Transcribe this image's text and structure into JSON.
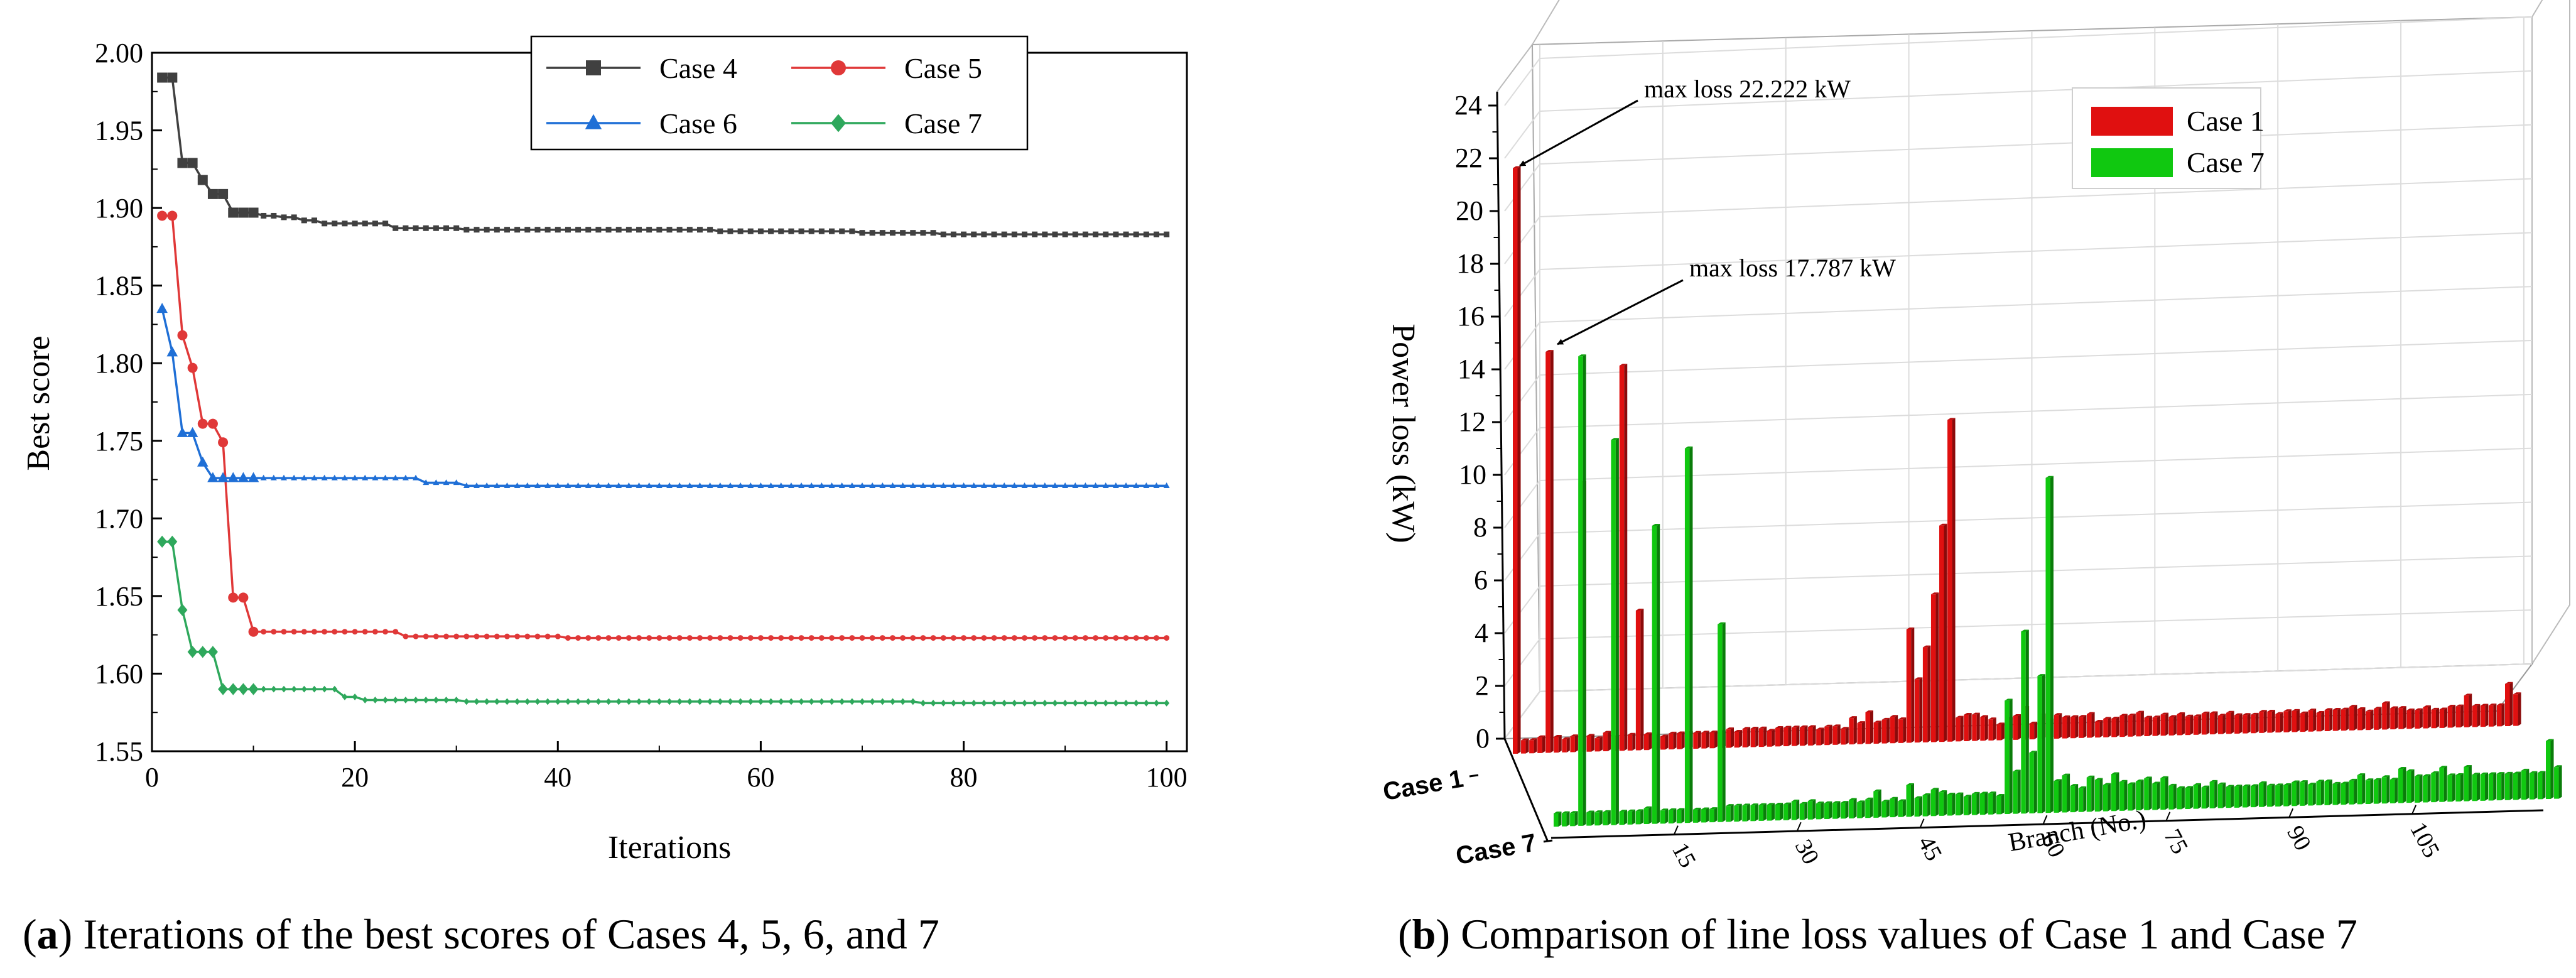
{
  "chart_data": [
    {
      "type": "line",
      "caption_letter": "a",
      "caption_text": " Iterations of the best scores of Cases 4, 5, 6, and 7",
      "xlabel": "Iterations",
      "ylabel": "Best score",
      "xlim": [
        0,
        102
      ],
      "ylim": [
        1.55,
        2.0
      ],
      "xticks": [
        0,
        20,
        40,
        60,
        80,
        100
      ],
      "yticks": [
        1.55,
        1.6,
        1.65,
        1.7,
        1.75,
        1.8,
        1.85,
        1.9,
        1.95,
        2.0
      ],
      "legend_position": "top-right",
      "series": [
        {
          "name": "Case 4",
          "color": "#404040",
          "marker": "square",
          "steps": [
            [
              1,
              1.984
            ],
            [
              3,
              1.929
            ],
            [
              5,
              1.918
            ],
            [
              6,
              1.909
            ],
            [
              8,
              1.897
            ],
            [
              11,
              1.895
            ],
            [
              13,
              1.894
            ],
            [
              15,
              1.892
            ],
            [
              17,
              1.89
            ],
            [
              24,
              1.887
            ],
            [
              31,
              1.886
            ],
            [
              56,
              1.885
            ],
            [
              70,
              1.884
            ],
            [
              78,
              1.883
            ],
            [
              100,
              1.883
            ]
          ]
        },
        {
          "name": "Case 5",
          "color": "#e03838",
          "marker": "circle",
          "steps": [
            [
              1,
              1.895
            ],
            [
              3,
              1.818
            ],
            [
              4,
              1.797
            ],
            [
              5,
              1.761
            ],
            [
              7,
              1.749
            ],
            [
              8,
              1.649
            ],
            [
              10,
              1.627
            ],
            [
              25,
              1.624
            ],
            [
              41,
              1.623
            ],
            [
              100,
              1.623
            ]
          ]
        },
        {
          "name": "Case 6",
          "color": "#1f6fd6",
          "marker": "triangle",
          "steps": [
            [
              1,
              1.835
            ],
            [
              2,
              1.807
            ],
            [
              3,
              1.755
            ],
            [
              5,
              1.736
            ],
            [
              6,
              1.726
            ],
            [
              27,
              1.723
            ],
            [
              31,
              1.721
            ],
            [
              100,
              1.721
            ]
          ]
        },
        {
          "name": "Case 7",
          "color": "#2ea85c",
          "marker": "diamond",
          "steps": [
            [
              1,
              1.685
            ],
            [
              3,
              1.641
            ],
            [
              4,
              1.614
            ],
            [
              7,
              1.59
            ],
            [
              19,
              1.585
            ],
            [
              21,
              1.583
            ],
            [
              31,
              1.582
            ],
            [
              76,
              1.581
            ],
            [
              100,
              1.581
            ]
          ]
        }
      ]
    },
    {
      "type": "bar3d",
      "caption_letter": "b",
      "caption_text": " Comparison of line loss values of Case 1 and Case 7",
      "xlabel": "Branch (No.)",
      "ylabel": "Power loss (kW)",
      "zlim": [
        0,
        24
      ],
      "zticks": [
        0,
        2,
        4,
        6,
        8,
        10,
        12,
        14,
        16,
        18,
        20,
        22,
        24
      ],
      "xticks": [
        15,
        30,
        45,
        60,
        75,
        90,
        105
      ],
      "annotations": [
        "max loss 22.222 kW",
        "max loss 17.787 kW"
      ],
      "series": [
        {
          "name": "Case 1",
          "color": "#e01010",
          "values": [
            22.2,
            0.5,
            0.5,
            0.6,
            15.2,
            0.6,
            0.5,
            0.6,
            10.2,
            0.6,
            0.5,
            0.7,
            0.5,
            14.6,
            0.6,
            5.3,
            0.6,
            0.5,
            0.5,
            0.6,
            0.6,
            0.6,
            0.6,
            0.6,
            0.6,
            0.6,
            0.7,
            0.6,
            0.7,
            0.7,
            0.7,
            0.6,
            0.7,
            0.7,
            0.7,
            0.7,
            0.7,
            0.6,
            0.7,
            0.7,
            0.6,
            1.0,
            0.8,
            1.2,
            0.8,
            0.9,
            1.0,
            0.9,
            4.3,
            2.4,
            3.6,
            5.6,
            8.2,
            12.2,
            0.9,
            1.0,
            1.0,
            0.9,
            0.8,
            0.6,
            0.8,
            0.9,
            1.2,
            0.6,
            0.9,
            0.7,
            0.9,
            0.8,
            0.8,
            0.8,
            0.9,
            0.6,
            0.7,
            0.7,
            0.8,
            0.8,
            0.9,
            0.7,
            0.7,
            0.8,
            0.7,
            0.8,
            0.7,
            0.7,
            0.8,
            0.8,
            0.7,
            0.8,
            0.7,
            0.7,
            0.7,
            0.8,
            0.8,
            0.7,
            0.8,
            0.8,
            0.7,
            0.8,
            0.7,
            0.8,
            0.8,
            0.8,
            0.9,
            0.8,
            0.7,
            0.8,
            1.0,
            0.8,
            0.8,
            0.7,
            0.7,
            0.8,
            0.7,
            0.7,
            0.8,
            0.8,
            1.2,
            0.8,
            0.8,
            0.8,
            0.8,
            1.6,
            1.2
          ]
        },
        {
          "name": "Case 7",
          "color": "#10c810",
          "values": [
            0.5,
            0.5,
            0.5,
            17.8,
            0.5,
            0.5,
            0.5,
            14.6,
            0.5,
            0.5,
            0.5,
            0.6,
            11.3,
            0.5,
            0.5,
            0.5,
            14.2,
            0.5,
            0.5,
            0.5,
            7.5,
            0.6,
            0.6,
            0.6,
            0.6,
            0.6,
            0.6,
            0.6,
            0.6,
            0.7,
            0.6,
            0.7,
            0.6,
            0.6,
            0.6,
            0.6,
            0.7,
            0.6,
            0.7,
            1.0,
            0.6,
            0.7,
            0.6,
            1.2,
            0.7,
            0.8,
            1.0,
            0.9,
            0.8,
            0.8,
            0.7,
            0.8,
            0.8,
            0.8,
            0.7,
            4.3,
            1.6,
            6.9,
            2.3,
            5.2,
            12.7,
            1.2,
            1.4,
            1.0,
            0.9,
            1.3,
            1.2,
            1.0,
            1.4,
            1.1,
            1.0,
            1.1,
            1.2,
            1.0,
            1.2,
            0.9,
            0.8,
            0.8,
            0.9,
            0.8,
            1.0,
            0.9,
            0.8,
            0.8,
            0.8,
            0.8,
            0.9,
            0.8,
            0.8,
            0.8,
            0.9,
            0.9,
            0.8,
            0.9,
            0.9,
            0.8,
            0.8,
            0.9,
            1.1,
            0.9,
            0.9,
            1.0,
            0.9,
            1.3,
            1.2,
            1.0,
            1.0,
            1.1,
            1.3,
            1.0,
            1.0,
            1.3,
            1.0,
            1.0,
            1.0,
            1.0,
            1.0,
            1.0,
            1.1,
            1.0,
            1.0,
            2.2,
            1.2
          ]
        }
      ]
    }
  ]
}
